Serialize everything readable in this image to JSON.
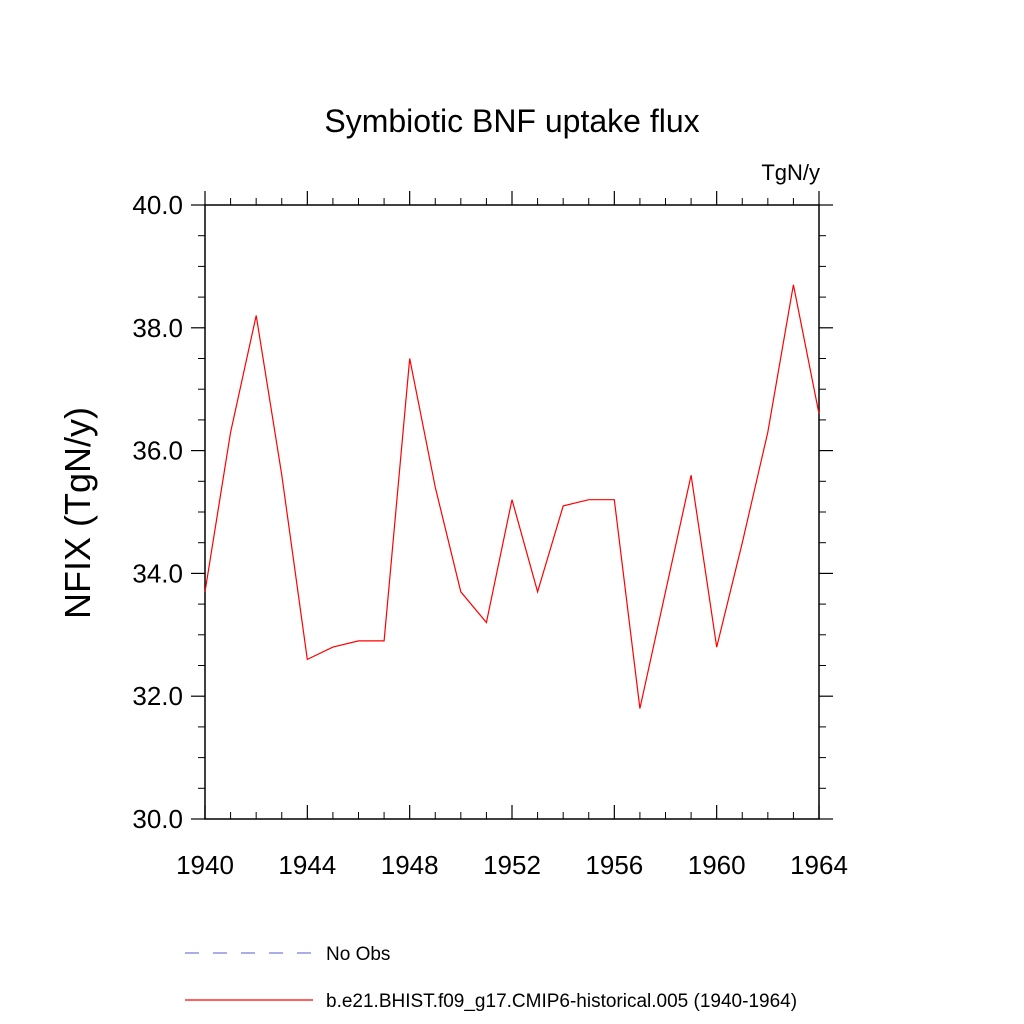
{
  "chart_data": {
    "type": "line",
    "title": "Symbiotic BNF uptake flux",
    "units": "TgN/y",
    "ylabel": "NFIX  (TgN/y)",
    "xlabel": "",
    "xlim": [
      1940,
      1964
    ],
    "ylim": [
      30.0,
      40.0
    ],
    "x_ticks": [
      "1940",
      "1944",
      "1948",
      "1952",
      "1956",
      "1960",
      "1964"
    ],
    "y_ticks": [
      "30.0",
      "32.0",
      "34.0",
      "36.0",
      "38.0",
      "40.0"
    ],
    "grid": false,
    "legend_position": "bottom",
    "series": [
      {
        "name": "No Obs",
        "color": "#7b7bd6",
        "dash": true,
        "x": [],
        "y": []
      },
      {
        "name": "b.e21.BHIST.f09_g17.CMIP6-historical.005 (1940-1964)",
        "color": "#ff0000",
        "dash": false,
        "x": [
          1940,
          1941,
          1942,
          1943,
          1944,
          1945,
          1946,
          1947,
          1948,
          1949,
          1950,
          1951,
          1952,
          1953,
          1954,
          1955,
          1956,
          1957,
          1958,
          1959,
          1960,
          1961,
          1962,
          1963,
          1964
        ],
        "y": [
          33.7,
          36.3,
          38.2,
          35.6,
          32.6,
          32.8,
          32.9,
          32.9,
          37.5,
          35.4,
          33.7,
          33.2,
          35.2,
          33.7,
          35.1,
          35.2,
          35.2,
          31.8,
          33.7,
          35.6,
          32.8,
          34.5,
          36.3,
          38.7,
          36.6
        ]
      }
    ]
  }
}
